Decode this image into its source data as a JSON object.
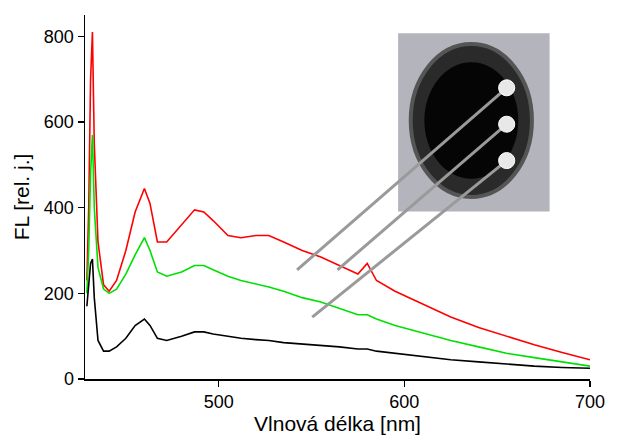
{
  "chart_data": {
    "type": "line",
    "xlabel": "Vlnová délka [nm]",
    "ylabel": "FL [rel. j.]",
    "x": [
      429,
      430,
      431,
      432,
      433,
      435,
      438,
      441,
      445,
      450,
      455,
      460,
      463,
      467,
      472,
      480,
      487,
      492,
      497,
      505,
      512,
      520,
      527,
      535,
      545,
      555,
      565,
      575,
      580,
      585,
      595,
      610,
      625,
      640,
      655,
      670,
      685,
      700
    ],
    "series": [
      {
        "color": "#ff0000",
        "values": [
          230,
          400,
          700,
          810,
          550,
          320,
          220,
          205,
          230,
          300,
          390,
          445,
          410,
          320,
          320,
          360,
          395,
          390,
          370,
          335,
          330,
          335,
          335,
          320,
          300,
          285,
          265,
          245,
          270,
          230,
          205,
          175,
          145,
          120,
          100,
          80,
          62,
          45
        ]
      },
      {
        "color": "#00e000",
        "values": [
          200,
          300,
          480,
          570,
          400,
          260,
          210,
          200,
          210,
          245,
          290,
          330,
          300,
          250,
          240,
          250,
          265,
          265,
          255,
          240,
          230,
          222,
          215,
          205,
          190,
          180,
          165,
          150,
          150,
          140,
          125,
          108,
          90,
          75,
          60,
          50,
          40,
          30
        ]
      },
      {
        "color": "#000000",
        "values": [
          170,
          230,
          270,
          280,
          190,
          90,
          65,
          65,
          75,
          95,
          125,
          140,
          125,
          95,
          90,
          100,
          110,
          110,
          105,
          100,
          95,
          92,
          90,
          85,
          82,
          78,
          75,
          70,
          70,
          65,
          60,
          52,
          45,
          40,
          35,
          30,
          27,
          25
        ]
      }
    ],
    "xlim": [
      428,
      700
    ],
    "ylim": [
      0,
      850
    ],
    "xticks": [
      500,
      600,
      700
    ],
    "yticks": [
      0,
      200,
      400,
      600,
      800
    ],
    "grid": false
  }
}
